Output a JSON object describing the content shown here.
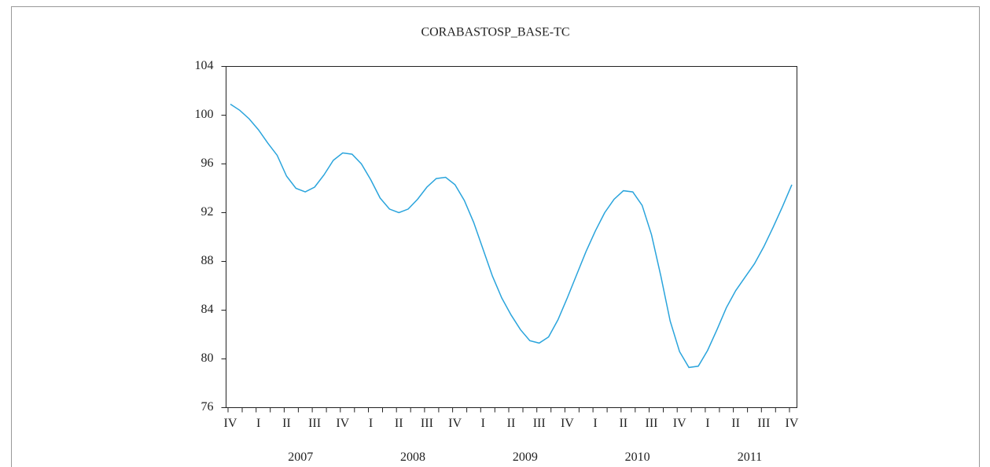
{
  "chart_data": {
    "type": "line",
    "title": "CORABASTOSP_BASE-TC",
    "categories": [
      "IV",
      null,
      null,
      "I",
      null,
      null,
      "II",
      null,
      null,
      "III",
      null,
      null,
      "IV",
      null,
      null,
      "I",
      null,
      null,
      "II",
      null,
      null,
      "III",
      null,
      null,
      "IV",
      null,
      null,
      "I",
      null,
      null,
      "II",
      null,
      null,
      "III",
      null,
      null,
      "IV",
      null,
      null,
      "I",
      null,
      null,
      "II",
      null,
      null,
      "III",
      null,
      null,
      "IV",
      null,
      null,
      "I",
      null,
      null,
      "II",
      null,
      null,
      "III",
      null,
      null,
      "IV"
    ],
    "groups": [
      "2007",
      "2008",
      "2009",
      "2010",
      "2011"
    ],
    "series": [
      {
        "name": "CORABASTOSP_BASE-TC",
        "color": "#2aa4dc",
        "values": [
          100.9,
          100.4,
          99.7,
          98.8,
          97.7,
          96.7,
          95.0,
          94.0,
          93.7,
          94.1,
          95.1,
          96.3,
          96.9,
          96.8,
          96.0,
          94.7,
          93.2,
          92.3,
          92.0,
          92.3,
          93.1,
          94.1,
          94.8,
          94.9,
          94.3,
          93.0,
          91.2,
          89.0,
          86.8,
          85.0,
          83.6,
          82.4,
          81.5,
          81.3,
          81.8,
          83.2,
          85.0,
          86.9,
          88.8,
          90.5,
          92.0,
          93.1,
          93.8,
          93.7,
          92.6,
          90.2,
          86.8,
          83.1,
          80.6,
          79.3,
          79.4,
          80.7,
          82.4,
          84.2,
          85.6,
          86.7,
          87.8,
          89.2,
          90.8,
          92.5,
          94.3
        ]
      }
    ],
    "ylim": [
      76,
      104
    ],
    "yticks": [
      76,
      80,
      84,
      88,
      92,
      96,
      100,
      104
    ]
  }
}
